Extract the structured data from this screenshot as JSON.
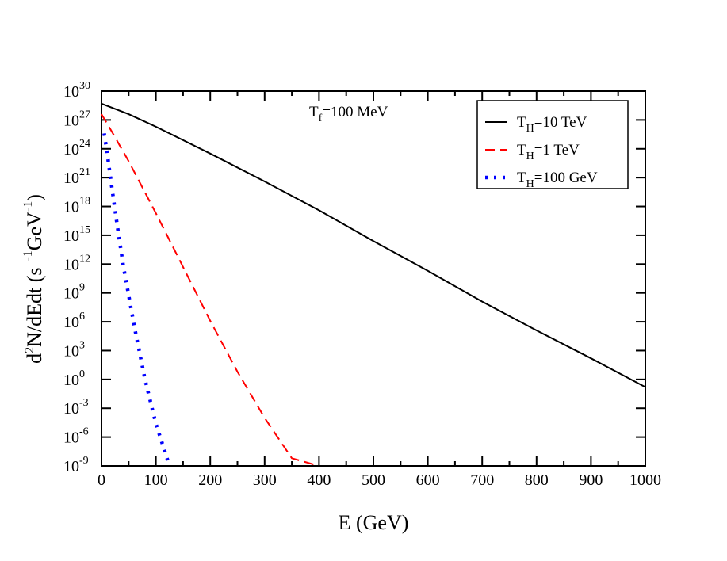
{
  "chart_data": {
    "type": "line",
    "title": "",
    "xlabel": "E (GeV)",
    "ylabel": "d²N/dEdt (s⁻¹GeV⁻¹)",
    "xlim": [
      0,
      1000
    ],
    "ylim_log10": [
      -9,
      30
    ],
    "y_scale": "log",
    "grid": false,
    "x_ticks": [
      0,
      100,
      200,
      300,
      400,
      500,
      600,
      700,
      800,
      900,
      1000
    ],
    "y_tick_exponents": [
      30,
      27,
      24,
      21,
      18,
      15,
      12,
      9,
      6,
      3,
      0,
      -3,
      -6,
      -9
    ],
    "annotation": {
      "base": "T",
      "sub": "f",
      "rest": "=100 MeV"
    },
    "legend_position": "top-right",
    "series": [
      {
        "name": "T_H=10 TeV",
        "legend": {
          "base": "T",
          "sub": "H",
          "rest": "=10 TeV"
        },
        "style": "solid",
        "color": "#000000",
        "x": [
          0,
          50,
          100,
          200,
          300,
          400,
          500,
          600,
          700,
          800,
          900,
          1000
        ],
        "log10_y": [
          28.7,
          27.6,
          26.3,
          23.5,
          20.6,
          17.6,
          14.4,
          11.3,
          8.1,
          5.1,
          2.2,
          -0.8
        ]
      },
      {
        "name": "T_H=1 TeV",
        "legend": {
          "base": "T",
          "sub": "H",
          "rest": "=1 TeV"
        },
        "style": "dashed",
        "color": "#ff0000",
        "x": [
          0,
          20,
          50,
          100,
          150,
          200,
          250,
          300,
          350,
          400
        ],
        "log10_y": [
          27.6,
          25.7,
          22.7,
          17.3,
          11.7,
          6.1,
          0.8,
          -4.0,
          -8.2,
          -9.0
        ]
      },
      {
        "name": "T_H=100 GeV",
        "legend": {
          "base": "T",
          "sub": "H",
          "rest": "=100 GeV"
        },
        "style": "dotted",
        "color": "#0000ff",
        "x": [
          5,
          10,
          20,
          30,
          40,
          60,
          80,
          100,
          125
        ],
        "log10_y": [
          25.6,
          23.7,
          19.6,
          15.6,
          11.9,
          5.6,
          0.0,
          -4.6,
          -9.0
        ]
      }
    ]
  }
}
